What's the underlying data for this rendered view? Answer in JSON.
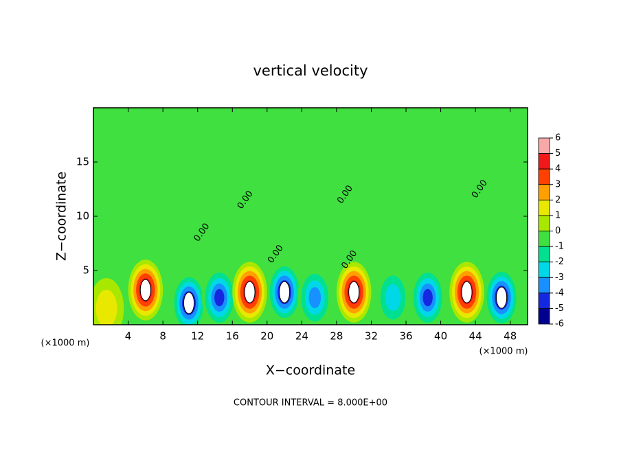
{
  "chart_data": {
    "type": "contour",
    "title": "vertical velocity",
    "x_label": "X−coordinate",
    "y_label": "Z−coordinate",
    "x_unit": "(×1000 m)",
    "y_unit": "(×1000 m)",
    "footer": "CONTOUR INTERVAL = 8.000E+00",
    "xlim": [
      0,
      50
    ],
    "ylim": [
      0,
      20
    ],
    "xticks": [
      4,
      8,
      12,
      16,
      20,
      24,
      28,
      32,
      36,
      40,
      44,
      48
    ],
    "yticks": [
      5,
      10,
      15
    ],
    "background_color": "#40e040",
    "x": [
      1.5,
      6,
      11,
      14.5,
      18,
      22,
      25.5,
      30,
      34.5,
      38.5,
      43,
      47
    ],
    "z": [
      1.5,
      3.2,
      2,
      2.5,
      3,
      3,
      2.5,
      3,
      2.5,
      2.5,
      3,
      2.5
    ],
    "values": [
      2,
      6,
      -6,
      -5,
      6,
      -6,
      -4,
      6,
      -3,
      -5,
      6,
      -6
    ],
    "contour_labels": [
      {
        "text": "0.00",
        "x": 12.5,
        "z": 8.5
      },
      {
        "text": "0.00",
        "x": 17.5,
        "z": 11.5
      },
      {
        "text": "0.00",
        "x": 21,
        "z": 6.5
      },
      {
        "text": "0.00",
        "x": 29,
        "z": 12
      },
      {
        "text": "0.00",
        "x": 44.5,
        "z": 12.5
      },
      {
        "text": "0.00",
        "x": 29.5,
        "z": 6
      }
    ],
    "colorbar": {
      "ticks": [
        6,
        5,
        4,
        3,
        2,
        1,
        0,
        -1,
        -2,
        -3,
        -4,
        -5,
        -6
      ],
      "colors": [
        "#f7a8a8",
        "#f01818",
        "#ff4000",
        "#ffa000",
        "#e8e800",
        "#a8e800",
        "#40e040",
        "#00e090",
        "#00d8e8",
        "#1890ff",
        "#1428e0",
        "#000090"
      ]
    }
  }
}
